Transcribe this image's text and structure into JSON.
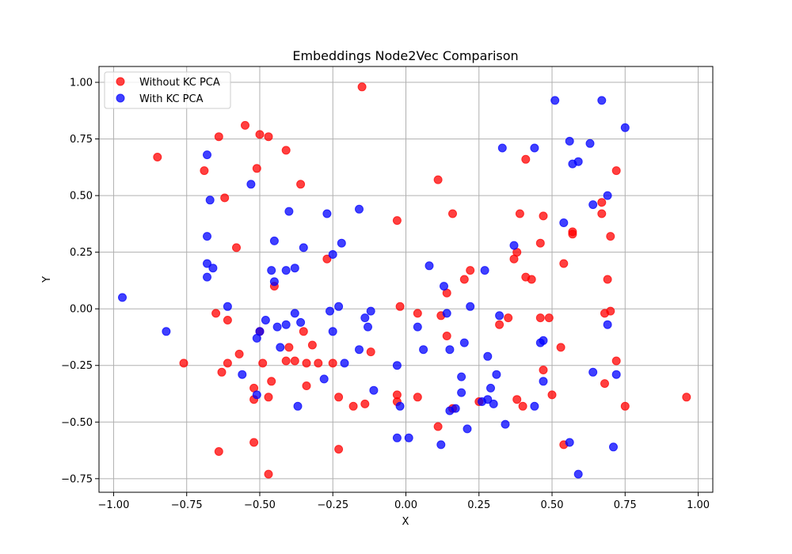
{
  "chart_data": {
    "type": "scatter",
    "title": "Embeddings Node2Vec Comparison",
    "xlabel": "X",
    "ylabel": "Y",
    "xlim": [
      -1.05,
      1.05
    ],
    "ylim": [
      -0.81,
      1.07
    ],
    "xticks": [
      -1.0,
      -0.75,
      -0.5,
      -0.25,
      0.0,
      0.25,
      0.5,
      0.75,
      1.0
    ],
    "xtick_labels": [
      "−1.00",
      "−0.75",
      "−0.50",
      "−0.25",
      "0.00",
      "0.25",
      "0.50",
      "0.75",
      "1.00"
    ],
    "yticks": [
      -0.75,
      -0.5,
      -0.25,
      0.0,
      0.25,
      0.5,
      0.75,
      1.0
    ],
    "ytick_labels": [
      "−0.75",
      "−0.50",
      "−0.25",
      "0.00",
      "0.25",
      "0.50",
      "0.75",
      "1.00"
    ],
    "grid": true,
    "legend_position": "top-left",
    "series": [
      {
        "name": "Without KC PCA",
        "color": "#ff0000",
        "points": [
          [
            -0.85,
            0.67
          ],
          [
            -0.69,
            0.61
          ],
          [
            -0.64,
            0.76
          ],
          [
            -0.62,
            0.49
          ],
          [
            -0.58,
            0.27
          ],
          [
            -0.55,
            0.81
          ],
          [
            -0.51,
            0.62
          ],
          [
            -0.5,
            0.77
          ],
          [
            -0.47,
            0.76
          ],
          [
            -0.41,
            0.7
          ],
          [
            -0.36,
            0.55
          ],
          [
            -0.15,
            0.98
          ],
          [
            -0.76,
            -0.24
          ],
          [
            -0.65,
            -0.02
          ],
          [
            -0.61,
            -0.05
          ],
          [
            -0.63,
            -0.28
          ],
          [
            -0.61,
            -0.24
          ],
          [
            -0.57,
            -0.2
          ],
          [
            -0.5,
            -0.1
          ],
          [
            -0.49,
            -0.24
          ],
          [
            -0.52,
            -0.35
          ],
          [
            -0.52,
            -0.4
          ],
          [
            -0.46,
            -0.32
          ],
          [
            -0.47,
            -0.39
          ],
          [
            -0.45,
            0.1
          ],
          [
            -0.41,
            -0.23
          ],
          [
            -0.4,
            -0.17
          ],
          [
            -0.38,
            -0.23
          ],
          [
            -0.35,
            -0.1
          ],
          [
            -0.34,
            -0.24
          ],
          [
            -0.34,
            -0.34
          ],
          [
            -0.32,
            -0.16
          ],
          [
            -0.3,
            -0.24
          ],
          [
            -0.27,
            0.22
          ],
          [
            -0.25,
            -0.24
          ],
          [
            -0.23,
            -0.39
          ],
          [
            -0.23,
            -0.62
          ],
          [
            -0.18,
            -0.43
          ],
          [
            -0.14,
            -0.42
          ],
          [
            -0.12,
            -0.19
          ],
          [
            -0.64,
            -0.63
          ],
          [
            -0.52,
            -0.59
          ],
          [
            -0.47,
            -0.73
          ],
          [
            -0.03,
            0.39
          ],
          [
            -0.02,
            0.01
          ],
          [
            -0.03,
            -0.38
          ],
          [
            -0.03,
            -0.41
          ],
          [
            0.04,
            -0.02
          ],
          [
            0.04,
            -0.39
          ],
          [
            0.11,
            0.57
          ],
          [
            0.12,
            -0.03
          ],
          [
            0.14,
            0.07
          ],
          [
            0.14,
            -0.12
          ],
          [
            0.16,
            0.42
          ],
          [
            0.11,
            -0.52
          ],
          [
            0.16,
            -0.44
          ],
          [
            0.2,
            0.13
          ],
          [
            0.22,
            0.17
          ],
          [
            0.25,
            -0.41
          ],
          [
            0.32,
            -0.07
          ],
          [
            0.35,
            -0.04
          ],
          [
            0.37,
            0.22
          ],
          [
            0.38,
            0.25
          ],
          [
            0.39,
            0.42
          ],
          [
            0.41,
            0.66
          ],
          [
            0.41,
            0.14
          ],
          [
            0.43,
            0.13
          ],
          [
            0.46,
            0.29
          ],
          [
            0.46,
            -0.04
          ],
          [
            0.47,
            0.41
          ],
          [
            0.47,
            -0.27
          ],
          [
            0.49,
            -0.04
          ],
          [
            0.5,
            -0.38
          ],
          [
            0.38,
            -0.4
          ],
          [
            0.4,
            -0.43
          ],
          [
            0.53,
            -0.17
          ],
          [
            0.54,
            0.2
          ],
          [
            0.54,
            -0.6
          ],
          [
            0.57,
            0.34
          ],
          [
            0.57,
            0.33
          ],
          [
            0.67,
            0.47
          ],
          [
            0.67,
            0.42
          ],
          [
            0.68,
            -0.02
          ],
          [
            0.68,
            -0.33
          ],
          [
            0.69,
            0.13
          ],
          [
            0.7,
            0.32
          ],
          [
            0.7,
            -0.01
          ],
          [
            0.72,
            0.61
          ],
          [
            0.72,
            -0.23
          ],
          [
            0.75,
            -0.43
          ],
          [
            0.96,
            -0.39
          ]
        ]
      },
      {
        "name": "With KC PCA",
        "color": "#0000ff",
        "points": [
          [
            -0.97,
            0.05
          ],
          [
            -0.82,
            -0.1
          ],
          [
            -0.68,
            0.68
          ],
          [
            -0.67,
            0.48
          ],
          [
            -0.68,
            0.32
          ],
          [
            -0.68,
            0.2
          ],
          [
            -0.68,
            0.14
          ],
          [
            -0.66,
            0.18
          ],
          [
            -0.61,
            0.01
          ],
          [
            -0.56,
            -0.29
          ],
          [
            -0.53,
            0.55
          ],
          [
            -0.51,
            -0.38
          ],
          [
            -0.51,
            -0.13
          ],
          [
            -0.5,
            -0.1
          ],
          [
            -0.48,
            -0.05
          ],
          [
            -0.46,
            0.17
          ],
          [
            -0.45,
            0.3
          ],
          [
            -0.45,
            0.12
          ],
          [
            -0.44,
            -0.08
          ],
          [
            -0.43,
            -0.17
          ],
          [
            -0.4,
            0.43
          ],
          [
            -0.41,
            0.17
          ],
          [
            -0.41,
            -0.07
          ],
          [
            -0.38,
            0.18
          ],
          [
            -0.38,
            -0.02
          ],
          [
            -0.37,
            -0.43
          ],
          [
            -0.36,
            -0.06
          ],
          [
            -0.35,
            0.27
          ],
          [
            -0.28,
            -0.31
          ],
          [
            -0.27,
            0.42
          ],
          [
            -0.26,
            -0.01
          ],
          [
            -0.25,
            0.24
          ],
          [
            -0.25,
            -0.1
          ],
          [
            -0.23,
            0.01
          ],
          [
            -0.22,
            0.29
          ],
          [
            -0.21,
            -0.24
          ],
          [
            -0.16,
            0.44
          ],
          [
            -0.16,
            -0.18
          ],
          [
            -0.14,
            -0.04
          ],
          [
            -0.13,
            -0.08
          ],
          [
            -0.12,
            -0.01
          ],
          [
            -0.11,
            -0.36
          ],
          [
            -0.03,
            -0.25
          ],
          [
            -0.03,
            -0.57
          ],
          [
            -0.02,
            -0.43
          ],
          [
            0.01,
            -0.57
          ],
          [
            0.04,
            -0.08
          ],
          [
            0.06,
            -0.18
          ],
          [
            0.08,
            0.19
          ],
          [
            0.12,
            -0.6
          ],
          [
            0.13,
            0.1
          ],
          [
            0.14,
            -0.02
          ],
          [
            0.15,
            -0.18
          ],
          [
            0.15,
            -0.45
          ],
          [
            0.17,
            -0.44
          ],
          [
            0.19,
            -0.37
          ],
          [
            0.19,
            -0.3
          ],
          [
            0.2,
            -0.15
          ],
          [
            0.21,
            -0.53
          ],
          [
            0.22,
            0.01
          ],
          [
            0.26,
            -0.41
          ],
          [
            0.27,
            0.17
          ],
          [
            0.28,
            -0.21
          ],
          [
            0.28,
            -0.4
          ],
          [
            0.29,
            -0.35
          ],
          [
            0.3,
            -0.42
          ],
          [
            0.31,
            -0.29
          ],
          [
            0.32,
            -0.03
          ],
          [
            0.33,
            0.71
          ],
          [
            0.34,
            -0.51
          ],
          [
            0.37,
            0.28
          ],
          [
            0.44,
            0.71
          ],
          [
            0.44,
            -0.43
          ],
          [
            0.46,
            -0.15
          ],
          [
            0.47,
            -0.14
          ],
          [
            0.47,
            -0.32
          ],
          [
            0.51,
            0.92
          ],
          [
            0.54,
            0.38
          ],
          [
            0.56,
            0.74
          ],
          [
            0.56,
            -0.59
          ],
          [
            0.57,
            0.64
          ],
          [
            0.59,
            0.65
          ],
          [
            0.59,
            -0.73
          ],
          [
            0.63,
            0.73
          ],
          [
            0.64,
            0.46
          ],
          [
            0.64,
            -0.28
          ],
          [
            0.67,
            0.92
          ],
          [
            0.69,
            0.5
          ],
          [
            0.69,
            -0.07
          ],
          [
            0.71,
            -0.61
          ],
          [
            0.72,
            -0.29
          ],
          [
            0.75,
            0.8
          ]
        ]
      }
    ]
  }
}
